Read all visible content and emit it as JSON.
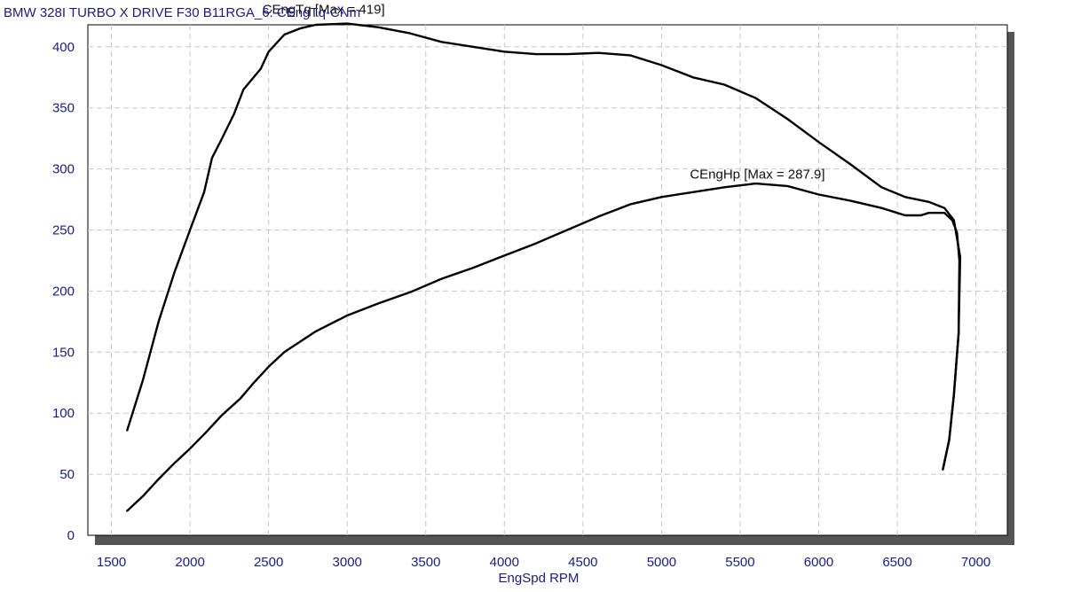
{
  "chart_data": {
    "type": "line",
    "title": "BMW 328I TURBO  X DRIVE F30 B11RGA_6: CEngTq-CNm",
    "xlabel": "EngSpd RPM",
    "ylabel": "",
    "xlim": [
      1350,
      7200
    ],
    "ylim": [
      0,
      418
    ],
    "x_ticks": [
      "1500",
      "2000",
      "2500",
      "3000",
      "3500",
      "4000",
      "4500",
      "5000",
      "5500",
      "6000",
      "6500",
      "7000"
    ],
    "y_ticks": [
      "0",
      "50",
      "100",
      "150",
      "200",
      "250",
      "300",
      "350",
      "400"
    ],
    "grid": true,
    "annotations": [
      {
        "text": "CEngTq [Max = 419]",
        "x": 2850,
        "y": 427
      },
      {
        "text": "CEngHp [Max = 287.9]",
        "x": 5610,
        "y": 292
      }
    ],
    "series": [
      {
        "name": "CEngTq",
        "color": "#000000",
        "points": [
          [
            1600,
            86
          ],
          [
            1700,
            127
          ],
          [
            1800,
            175
          ],
          [
            1900,
            215
          ],
          [
            2000,
            250
          ],
          [
            2090,
            281
          ],
          [
            2140,
            309
          ],
          [
            2200,
            324
          ],
          [
            2280,
            345
          ],
          [
            2340,
            365
          ],
          [
            2450,
            382
          ],
          [
            2500,
            396
          ],
          [
            2600,
            410
          ],
          [
            2700,
            415
          ],
          [
            2800,
            418
          ],
          [
            3000,
            419
          ],
          [
            3200,
            416
          ],
          [
            3400,
            411
          ],
          [
            3600,
            404
          ],
          [
            3800,
            400
          ],
          [
            4000,
            396
          ],
          [
            4200,
            394
          ],
          [
            4400,
            394
          ],
          [
            4600,
            395
          ],
          [
            4800,
            393
          ],
          [
            5000,
            385
          ],
          [
            5200,
            375
          ],
          [
            5400,
            369
          ],
          [
            5600,
            358
          ],
          [
            5800,
            341
          ],
          [
            6000,
            322
          ],
          [
            6200,
            304
          ],
          [
            6400,
            285
          ],
          [
            6550,
            277
          ],
          [
            6700,
            273
          ],
          [
            6800,
            268
          ],
          [
            6860,
            258
          ],
          [
            6900,
            228
          ],
          [
            6890,
            165
          ],
          [
            6860,
            115
          ],
          [
            6830,
            78
          ],
          [
            6790,
            54
          ]
        ]
      },
      {
        "name": "CEngHp",
        "color": "#000000",
        "points": [
          [
            1600,
            20
          ],
          [
            1700,
            32
          ],
          [
            1800,
            46
          ],
          [
            1900,
            59
          ],
          [
            2000,
            71
          ],
          [
            2100,
            84
          ],
          [
            2200,
            98
          ],
          [
            2320,
            112
          ],
          [
            2400,
            124
          ],
          [
            2500,
            138
          ],
          [
            2600,
            150
          ],
          [
            2800,
            167
          ],
          [
            3000,
            180
          ],
          [
            3200,
            190
          ],
          [
            3400,
            199
          ],
          [
            3600,
            210
          ],
          [
            3800,
            219
          ],
          [
            4000,
            229
          ],
          [
            4200,
            239
          ],
          [
            4400,
            250
          ],
          [
            4600,
            261
          ],
          [
            4800,
            271
          ],
          [
            5000,
            277
          ],
          [
            5200,
            281
          ],
          [
            5400,
            285
          ],
          [
            5600,
            288
          ],
          [
            5800,
            286
          ],
          [
            6000,
            279
          ],
          [
            6200,
            274
          ],
          [
            6400,
            268
          ],
          [
            6550,
            262
          ],
          [
            6650,
            262
          ],
          [
            6700,
            264
          ],
          [
            6800,
            264
          ],
          [
            6850,
            258
          ],
          [
            6880,
            248
          ],
          [
            6895,
            225
          ],
          [
            6890,
            165
          ],
          [
            6860,
            115
          ],
          [
            6830,
            78
          ],
          [
            6790,
            54
          ]
        ]
      }
    ]
  }
}
